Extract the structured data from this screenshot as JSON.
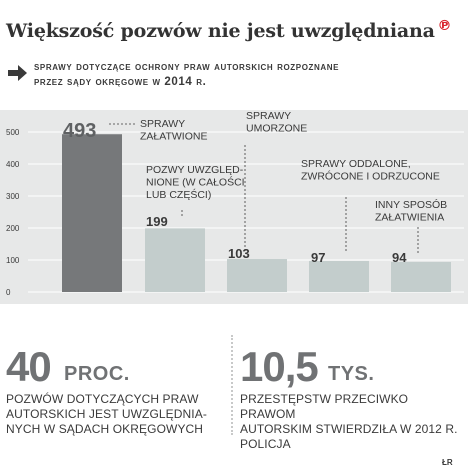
{
  "title": "Większość pozwów nie jest uwzględniana",
  "logo": "℗",
  "subtitle": "Sprawy dotyczące ochrony praw autorskich rozpoznane\nprzez sądy okręgowe w 2014 r.",
  "colors": {
    "bar_dark": "#76787a",
    "bar_light": "#c3cdcc",
    "accent": "#d9232d",
    "text": "#3a3a3a",
    "big_number": "#707274",
    "chart_bg": "#e7e8e8"
  },
  "chart_data": {
    "type": "bar",
    "categories": [
      "SPRAWY ZAŁATWIONE",
      "POZWY UWZGLĘDNIONE (W CAŁOŚCI LUB CZĘŚCI)",
      "SPRAWY UMORZONE",
      "SPRAWY ODDALONE, ZWRÓCONE I ODRZUCONE",
      "INNY SPOSÓB ZAŁATWIENIA"
    ],
    "category_lines": [
      [
        "SPRAWY",
        "ZAŁATWIONE"
      ],
      [
        "POZWY UWZGLĘD-",
        "NIONE (W CAŁOŚCI",
        "LUB CZĘŚCI)"
      ],
      [
        "SPRAWY",
        "UMORZONE"
      ],
      [
        "SPRAWY ODDALONE,",
        "ZWRÓCONE I ODRZUCONE"
      ],
      [
        "INNY SPOSÓB",
        "ZAŁATWIENIA"
      ]
    ],
    "values": [
      493,
      199,
      103,
      97,
      94
    ],
    "value_labels": [
      "493",
      "199",
      "103",
      "97",
      "94"
    ],
    "ylim": [
      0,
      500
    ],
    "yticks": [
      0,
      100,
      200,
      300,
      400,
      500
    ],
    "grid": true
  },
  "stats": [
    {
      "number": "40",
      "unit": "PROC.",
      "desc": "Pozwów dotyczących praw\nautorskich jest uwzględnia-\nnych w sądach okręgowych"
    },
    {
      "number": "10,5",
      "unit": "TYS.",
      "desc": "Przestępstw przeciwko prawom\nautorskim stwierdziła w 2012 r.\npolicja"
    }
  ],
  "credit": "ŁR"
}
